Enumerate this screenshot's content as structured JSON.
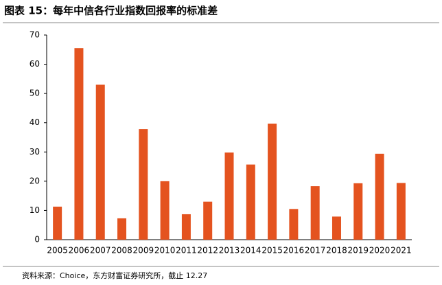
{
  "chart_data": {
    "type": "bar",
    "title": "图表 15：每年中信各行业指数回报率的标准差",
    "source": "资料来源：Choice，东方财富证券研究所，截止 12.27",
    "categories": [
      "2005",
      "2006",
      "2007",
      "2008",
      "2009",
      "2010",
      "2011",
      "2012",
      "2013",
      "2014",
      "2015",
      "2016",
      "2017",
      "2018",
      "2019",
      "2020",
      "2021"
    ],
    "values": [
      11.3,
      65.5,
      53,
      7.3,
      37.8,
      20,
      8.7,
      13,
      29.8,
      25.7,
      39.7,
      10.5,
      18.3,
      7.9,
      19.3,
      29.4,
      19.4
    ],
    "color": "#e4531f",
    "ylim": [
      0,
      70
    ],
    "yticks": [
      0,
      10,
      20,
      30,
      40,
      50,
      60,
      70
    ],
    "grid": false
  }
}
